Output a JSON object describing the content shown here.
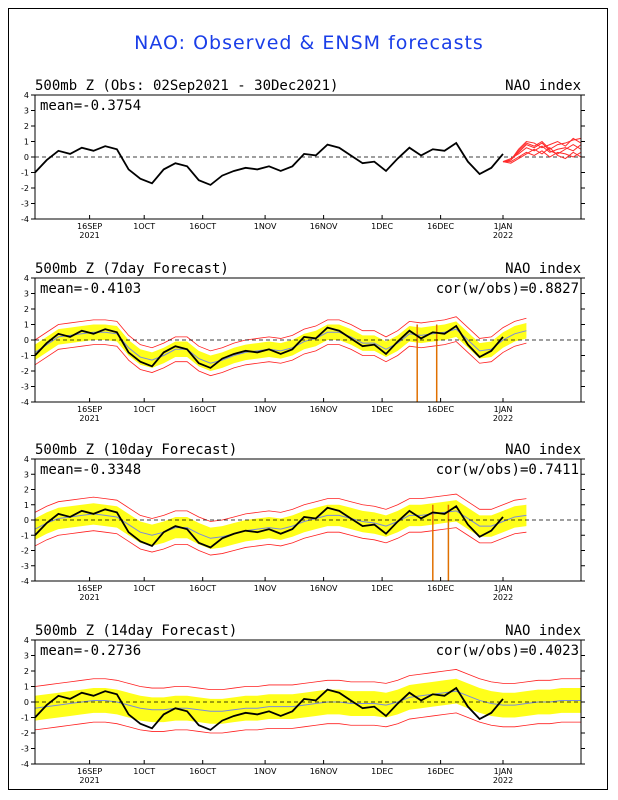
{
  "title": "NAO: Observed & ENSM forecasts",
  "colors": {
    "observed": "#000000",
    "forecast_members": "#ff2a2a",
    "spread": "#ffff1a",
    "mean_line": "#7a8bdc",
    "spread_edge": "#ff2020",
    "drop": "#e07000",
    "title": "#1a3ee8"
  },
  "axes": {
    "ylim": [
      -4,
      4
    ],
    "y_ticks": [
      "4",
      "3",
      "2",
      "1",
      "0",
      "-1",
      "-2",
      "-3",
      "-4"
    ],
    "x_ticks": [
      {
        "day": 14,
        "label": "16SEP",
        "sub": "2021"
      },
      {
        "day": 28,
        "label": "1OCT",
        "sub": ""
      },
      {
        "day": 43,
        "label": "16OCT",
        "sub": ""
      },
      {
        "day": 59,
        "label": "1NOV",
        "sub": ""
      },
      {
        "day": 74,
        "label": "16NOV",
        "sub": ""
      },
      {
        "day": 89,
        "label": "1DEC",
        "sub": ""
      },
      {
        "day": 104,
        "label": "16DEC",
        "sub": ""
      },
      {
        "day": 120,
        "label": "1JAN",
        "sub": "2022"
      }
    ],
    "xlim_days": [
      0,
      140
    ]
  },
  "chart_data": [
    {
      "type": "line",
      "title": "500mb Z (Obs: 02Sep2021 - 30Dec2021)",
      "right_label": "NAO index",
      "mean_label": "mean=-0.3754",
      "cor_label": "",
      "observed": {
        "x": [
          0,
          3,
          6,
          9,
          12,
          15,
          18,
          21,
          24,
          27,
          30,
          33,
          36,
          39,
          42,
          45,
          48,
          51,
          54,
          57,
          60,
          63,
          66,
          69,
          72,
          75,
          78,
          81,
          84,
          87,
          90,
          93,
          96,
          99,
          102,
          105,
          108,
          111,
          114,
          117,
          120
        ],
        "y": [
          -1.0,
          -0.2,
          0.4,
          0.2,
          0.6,
          0.4,
          0.7,
          0.5,
          -0.8,
          -1.4,
          -1.7,
          -0.8,
          -0.4,
          -0.6,
          -1.5,
          -1.8,
          -1.2,
          -0.9,
          -0.7,
          -0.8,
          -0.6,
          -0.9,
          -0.6,
          0.2,
          0.1,
          0.8,
          0.6,
          0.1,
          -0.4,
          -0.3,
          -0.9,
          -0.1,
          0.6,
          0.1,
          0.5,
          0.4,
          0.9,
          -0.3,
          -1.1,
          -0.7,
          0.2
        ]
      },
      "forecast_members": {
        "x": [
          120,
          122,
          124,
          126,
          128,
          130,
          132,
          134,
          136,
          138,
          140
        ],
        "members": [
          [
            -0.3,
            -0.2,
            0.4,
            0.9,
            0.7,
            1.0,
            0.5,
            0.8,
            0.9,
            1.1,
            1.2
          ],
          [
            -0.3,
            -0.1,
            0.2,
            0.6,
            0.4,
            0.7,
            0.3,
            0.5,
            0.6,
            0.4,
            0.8
          ],
          [
            -0.3,
            -0.3,
            0.0,
            0.3,
            0.1,
            0.4,
            0.0,
            0.3,
            0.2,
            0.0,
            0.3
          ],
          [
            -0.3,
            -0.2,
            0.5,
            1.0,
            0.9,
            0.6,
            0.8,
            1.0,
            0.7,
            1.2,
            0.9
          ],
          [
            -0.3,
            -0.4,
            -0.1,
            0.2,
            0.5,
            0.2,
            0.6,
            0.1,
            -0.1,
            0.3,
            0.0
          ],
          [
            -0.3,
            -0.2,
            0.3,
            0.8,
            0.6,
            0.9,
            0.4,
            0.2,
            0.5,
            0.8,
            0.5
          ]
        ]
      },
      "spread": null,
      "drops": []
    },
    {
      "type": "line",
      "title": "500mb Z (7day Forecast)",
      "right_label": "NAO index",
      "mean_label": "mean=-0.4103",
      "cor_label": "cor(w/obs)=0.8827",
      "observed": {
        "x": [
          0,
          3,
          6,
          9,
          12,
          15,
          18,
          21,
          24,
          27,
          30,
          33,
          36,
          39,
          42,
          45,
          48,
          51,
          54,
          57,
          60,
          63,
          66,
          69,
          72,
          75,
          78,
          81,
          84,
          87,
          90,
          93,
          96,
          99,
          102,
          105,
          108,
          111,
          114,
          117,
          120
        ],
        "y": [
          -1.0,
          -0.2,
          0.4,
          0.2,
          0.6,
          0.4,
          0.7,
          0.5,
          -0.8,
          -1.4,
          -1.7,
          -0.8,
          -0.4,
          -0.6,
          -1.5,
          -1.8,
          -1.2,
          -0.9,
          -0.7,
          -0.8,
          -0.6,
          -0.9,
          -0.6,
          0.2,
          0.1,
          0.8,
          0.6,
          0.1,
          -0.4,
          -0.3,
          -0.9,
          -0.1,
          0.6,
          0.1,
          0.5,
          0.4,
          0.9,
          -0.3,
          -1.1,
          -0.7,
          0.2
        ]
      },
      "spread": {
        "x": [
          0,
          3,
          6,
          9,
          12,
          15,
          18,
          21,
          24,
          27,
          30,
          33,
          36,
          39,
          42,
          45,
          48,
          51,
          54,
          57,
          60,
          63,
          66,
          69,
          72,
          75,
          78,
          81,
          84,
          87,
          90,
          93,
          96,
          99,
          102,
          105,
          108,
          111,
          114,
          117,
          120,
          123,
          126
        ],
        "mean": [
          -0.8,
          -0.3,
          0.2,
          0.3,
          0.4,
          0.5,
          0.5,
          0.4,
          -0.5,
          -1.1,
          -1.3,
          -1.0,
          -0.6,
          -0.6,
          -1.2,
          -1.5,
          -1.3,
          -1.0,
          -0.8,
          -0.7,
          -0.6,
          -0.7,
          -0.5,
          -0.1,
          0.1,
          0.5,
          0.5,
          0.2,
          -0.2,
          -0.2,
          -0.6,
          -0.2,
          0.4,
          0.3,
          0.4,
          0.5,
          0.7,
          0.0,
          -0.7,
          -0.6,
          0.0,
          0.4,
          0.6
        ],
        "inner": [
          0.5,
          0.5,
          0.5,
          0.5,
          0.5,
          0.5,
          0.5,
          0.5,
          0.5,
          0.5,
          0.5,
          0.5,
          0.5,
          0.5,
          0.5,
          0.5,
          0.5,
          0.5,
          0.5,
          0.5,
          0.5,
          0.5,
          0.5,
          0.5,
          0.5,
          0.5,
          0.5,
          0.5,
          0.5,
          0.5,
          0.5,
          0.5,
          0.5,
          0.5,
          0.5,
          0.5,
          0.5,
          0.5,
          0.5,
          0.5,
          0.5,
          0.5,
          0.5
        ],
        "outer": [
          0.8,
          0.8,
          0.8,
          0.8,
          0.8,
          0.8,
          0.8,
          0.8,
          0.8,
          0.8,
          0.8,
          0.8,
          0.8,
          0.8,
          0.8,
          0.8,
          0.8,
          0.8,
          0.8,
          0.8,
          0.8,
          0.8,
          0.8,
          0.8,
          0.8,
          0.8,
          0.8,
          0.8,
          0.8,
          0.8,
          0.8,
          0.8,
          0.8,
          0.8,
          0.8,
          0.8,
          0.8,
          0.8,
          0.8,
          0.8,
          0.8,
          0.8,
          0.8
        ]
      },
      "drops": [
        98,
        103
      ]
    },
    {
      "type": "line",
      "title": "500mb Z (10day Forecast)",
      "right_label": "NAO index",
      "mean_label": "mean=-0.3348",
      "cor_label": "cor(w/obs)=0.7411",
      "observed": {
        "x": [
          0,
          3,
          6,
          9,
          12,
          15,
          18,
          21,
          24,
          27,
          30,
          33,
          36,
          39,
          42,
          45,
          48,
          51,
          54,
          57,
          60,
          63,
          66,
          69,
          72,
          75,
          78,
          81,
          84,
          87,
          90,
          93,
          96,
          99,
          102,
          105,
          108,
          111,
          114,
          117,
          120
        ],
        "y": [
          -1.0,
          -0.2,
          0.4,
          0.2,
          0.6,
          0.4,
          0.7,
          0.5,
          -0.8,
          -1.4,
          -1.7,
          -0.8,
          -0.4,
          -0.6,
          -1.5,
          -1.8,
          -1.2,
          -0.9,
          -0.7,
          -0.8,
          -0.6,
          -0.9,
          -0.6,
          0.2,
          0.1,
          0.8,
          0.6,
          0.1,
          -0.4,
          -0.3,
          -0.9,
          -0.1,
          0.6,
          0.1,
          0.5,
          0.4,
          0.9,
          -0.3,
          -1.1,
          -0.7,
          0.2
        ]
      },
      "spread": {
        "x": [
          0,
          3,
          6,
          9,
          12,
          15,
          18,
          21,
          24,
          27,
          30,
          33,
          36,
          39,
          42,
          45,
          48,
          51,
          54,
          57,
          60,
          63,
          66,
          69,
          72,
          75,
          78,
          81,
          84,
          87,
          90,
          93,
          96,
          99,
          102,
          105,
          108,
          111,
          114,
          117,
          120,
          123,
          126
        ],
        "mean": [
          -0.6,
          -0.2,
          0.1,
          0.2,
          0.3,
          0.4,
          0.3,
          0.2,
          -0.3,
          -0.8,
          -1.0,
          -0.8,
          -0.5,
          -0.5,
          -0.9,
          -1.2,
          -1.1,
          -0.9,
          -0.7,
          -0.6,
          -0.5,
          -0.6,
          -0.4,
          -0.1,
          0.1,
          0.3,
          0.3,
          0.1,
          -0.1,
          -0.2,
          -0.4,
          -0.1,
          0.3,
          0.3,
          0.4,
          0.5,
          0.6,
          0.1,
          -0.4,
          -0.4,
          -0.1,
          0.2,
          0.3
        ],
        "inner": [
          0.7,
          0.7,
          0.7,
          0.7,
          0.7,
          0.7,
          0.7,
          0.7,
          0.7,
          0.7,
          0.7,
          0.7,
          0.7,
          0.7,
          0.7,
          0.7,
          0.7,
          0.7,
          0.7,
          0.7,
          0.7,
          0.7,
          0.7,
          0.7,
          0.7,
          0.7,
          0.7,
          0.7,
          0.7,
          0.7,
          0.7,
          0.7,
          0.7,
          0.7,
          0.7,
          0.7,
          0.7,
          0.7,
          0.7,
          0.7,
          0.7,
          0.7,
          0.7
        ],
        "outer": [
          1.1,
          1.1,
          1.1,
          1.1,
          1.1,
          1.1,
          1.1,
          1.1,
          1.1,
          1.1,
          1.1,
          1.1,
          1.1,
          1.1,
          1.1,
          1.1,
          1.1,
          1.1,
          1.1,
          1.1,
          1.1,
          1.1,
          1.1,
          1.1,
          1.1,
          1.1,
          1.1,
          1.1,
          1.1,
          1.1,
          1.1,
          1.1,
          1.1,
          1.1,
          1.1,
          1.1,
          1.1,
          1.1,
          1.1,
          1.1,
          1.1,
          1.1,
          1.1
        ]
      },
      "drops": [
        102,
        106
      ]
    },
    {
      "type": "line",
      "title": "500mb Z (14day Forecast)",
      "right_label": "NAO index",
      "mean_label": "mean=-0.2736",
      "cor_label": "cor(w/obs)=0.4023",
      "observed": {
        "x": [
          0,
          3,
          6,
          9,
          12,
          15,
          18,
          21,
          24,
          27,
          30,
          33,
          36,
          39,
          42,
          45,
          48,
          51,
          54,
          57,
          60,
          63,
          66,
          69,
          72,
          75,
          78,
          81,
          84,
          87,
          90,
          93,
          96,
          99,
          102,
          105,
          108,
          111,
          114,
          117,
          120
        ],
        "y": [
          -1.0,
          -0.2,
          0.4,
          0.2,
          0.6,
          0.4,
          0.7,
          0.5,
          -0.8,
          -1.4,
          -1.7,
          -0.8,
          -0.4,
          -0.6,
          -1.5,
          -1.8,
          -1.2,
          -0.9,
          -0.7,
          -0.8,
          -0.6,
          -0.9,
          -0.6,
          0.2,
          0.1,
          0.8,
          0.6,
          0.1,
          -0.4,
          -0.3,
          -0.9,
          -0.1,
          0.6,
          0.1,
          0.5,
          0.4,
          0.9,
          -0.3,
          -1.1,
          -0.7,
          0.2
        ]
      },
      "spread": {
        "x": [
          0,
          3,
          6,
          9,
          12,
          15,
          18,
          21,
          24,
          27,
          30,
          33,
          36,
          39,
          42,
          45,
          48,
          51,
          54,
          57,
          60,
          63,
          66,
          69,
          72,
          75,
          78,
          81,
          84,
          87,
          90,
          93,
          96,
          99,
          102,
          105,
          108,
          111,
          114,
          117,
          120,
          123,
          126,
          129,
          132,
          135,
          138,
          140
        ],
        "mean": [
          -0.4,
          -0.3,
          -0.2,
          -0.1,
          0.0,
          0.1,
          0.1,
          0.0,
          -0.2,
          -0.4,
          -0.5,
          -0.5,
          -0.4,
          -0.4,
          -0.5,
          -0.6,
          -0.6,
          -0.5,
          -0.4,
          -0.4,
          -0.3,
          -0.3,
          -0.3,
          -0.2,
          -0.1,
          0.0,
          0.0,
          -0.1,
          -0.1,
          -0.1,
          -0.2,
          0.0,
          0.3,
          0.4,
          0.5,
          0.6,
          0.7,
          0.4,
          0.1,
          -0.1,
          -0.2,
          -0.2,
          -0.1,
          0.0,
          0.0,
          0.1,
          0.1,
          0.1
        ],
        "inner": [
          0.8,
          0.8,
          0.8,
          0.8,
          0.8,
          0.8,
          0.8,
          0.8,
          0.8,
          0.8,
          0.8,
          0.8,
          0.8,
          0.8,
          0.8,
          0.8,
          0.8,
          0.8,
          0.8,
          0.8,
          0.8,
          0.8,
          0.8,
          0.8,
          0.8,
          0.8,
          0.8,
          0.8,
          0.8,
          0.8,
          0.8,
          0.8,
          0.8,
          0.8,
          0.8,
          0.8,
          0.8,
          0.8,
          0.8,
          0.8,
          0.8,
          0.8,
          0.8,
          0.8,
          0.8,
          0.8,
          0.8,
          0.8
        ],
        "outer": [
          1.4,
          1.4,
          1.4,
          1.4,
          1.4,
          1.4,
          1.4,
          1.4,
          1.4,
          1.4,
          1.4,
          1.4,
          1.4,
          1.4,
          1.4,
          1.4,
          1.4,
          1.4,
          1.4,
          1.4,
          1.4,
          1.4,
          1.4,
          1.4,
          1.4,
          1.4,
          1.4,
          1.4,
          1.4,
          1.4,
          1.4,
          1.4,
          1.4,
          1.4,
          1.4,
          1.4,
          1.4,
          1.4,
          1.4,
          1.4,
          1.4,
          1.4,
          1.4,
          1.4,
          1.4,
          1.4,
          1.4,
          1.4
        ]
      },
      "drops": []
    }
  ]
}
